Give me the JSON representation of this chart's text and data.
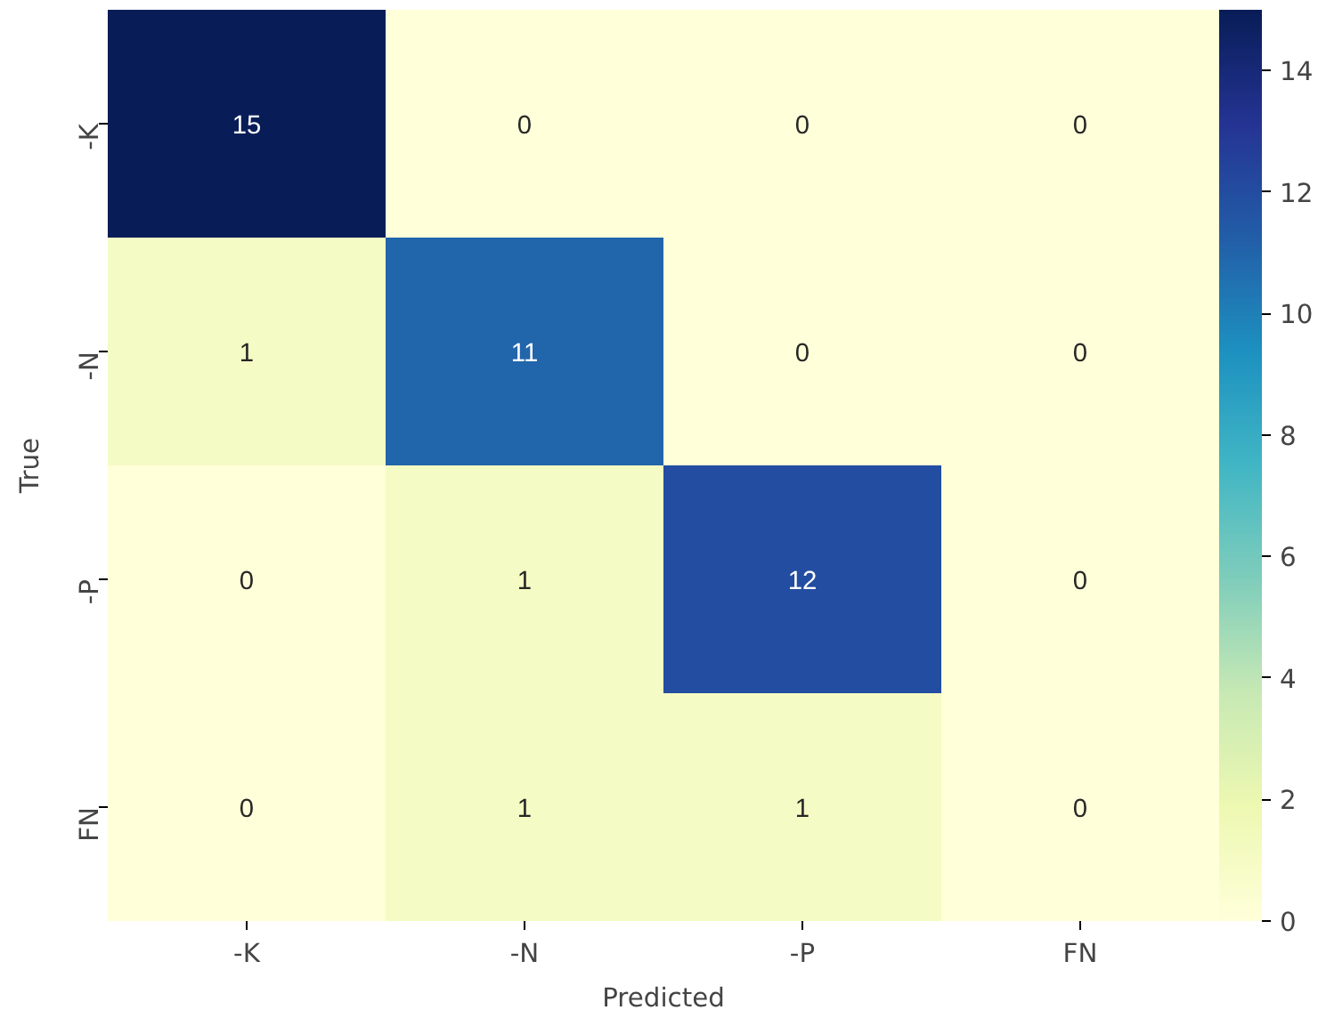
{
  "chart_data": {
    "type": "heatmap",
    "xlabel": "Predicted",
    "ylabel": "True",
    "categories": [
      "-K",
      "-N",
      "-P",
      "FN"
    ],
    "y_categories": [
      "-K",
      "-N",
      "-P",
      "FN"
    ],
    "cells": [
      [
        15,
        0,
        0,
        0
      ],
      [
        1,
        11,
        0,
        0
      ],
      [
        0,
        1,
        12,
        0
      ],
      [
        0,
        1,
        1,
        0
      ]
    ],
    "clim": [
      0,
      15
    ],
    "cticks": [
      0,
      2,
      4,
      6,
      8,
      10,
      12,
      14
    ],
    "data_labels": true
  }
}
